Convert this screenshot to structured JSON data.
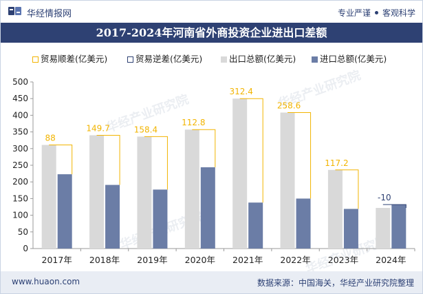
{
  "header": {
    "brand": "华经情报网",
    "tagline_left": "专业严谨",
    "tagline_right": "客观科学"
  },
  "watermark": "华经产业研究院",
  "footer": {
    "url": "www.huaon.com",
    "source": "数据来源：中国海关，华经产业研究院整理"
  },
  "colors": {
    "title_bg": "#2e4173",
    "surplus": "#f2b400",
    "deficit": "#2e4173",
    "export_bar": "#d9d9d9",
    "import_bar": "#6b7da6"
  },
  "chart_data": {
    "type": "bar",
    "title": "2017-2024年河南省外商投资企业进出口差额",
    "categories": [
      "2017年",
      "2018年",
      "2019年",
      "2020年",
      "2021年",
      "2022年",
      "2023年",
      "2024年"
    ],
    "series": [
      {
        "name": "出口总额(亿美元)",
        "values": [
          311,
          340,
          336,
          357,
          450,
          408,
          236,
          122
        ]
      },
      {
        "name": "进口总额(亿美元)",
        "values": [
          223,
          191,
          177,
          244,
          138,
          150,
          119,
          132
        ]
      }
    ],
    "balance": {
      "surplus_name": "贸易顺差(亿美元)",
      "deficit_name": "贸易逆差(亿美元)",
      "values": [
        88,
        149.7,
        158.4,
        112.8,
        312.4,
        258.6,
        117.2,
        -10
      ],
      "labels": [
        "88",
        "149.7",
        "158.4",
        "112.8",
        "312.4",
        "258.6",
        "117.2",
        "-10"
      ]
    },
    "ylim": [
      0,
      500
    ],
    "yticks": [
      0,
      50,
      100,
      150,
      200,
      250,
      300,
      350,
      400,
      450,
      500
    ],
    "grid": false,
    "legend_position": "top"
  }
}
